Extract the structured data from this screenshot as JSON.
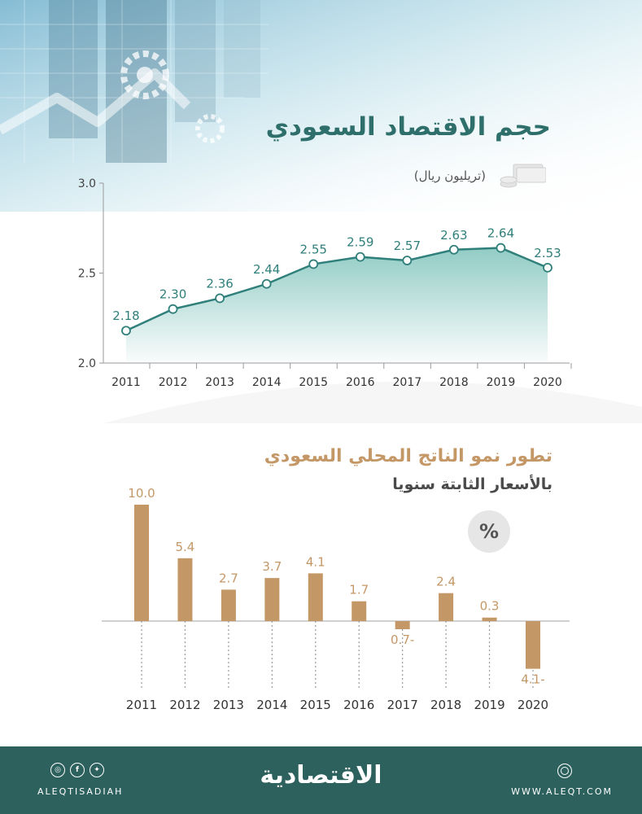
{
  "colors": {
    "teal": "#2f7f7a",
    "teal_fill": "#8cc9c2",
    "bar_tan": "#c49766",
    "title_tan": "#c49766",
    "footer": "#2c615d"
  },
  "chart1": {
    "title": "حجم الاقتصاد السعودي",
    "unit": "(تريليون ريال)",
    "icon": "money-coins-icon"
  },
  "chart2": {
    "title": "تطور نمو الناتج المحلي السعودي",
    "subtitle": "بالأسعار الثابتة سنويا",
    "unit_badge": "%"
  },
  "chart_data": [
    {
      "type": "area",
      "title": "حجم الاقتصاد السعودي",
      "ylabel": "(تريليون ريال)",
      "x": [
        "2011",
        "2012",
        "2013",
        "2014",
        "2015",
        "2016",
        "2017",
        "2018",
        "2019",
        "2020"
      ],
      "values": [
        2.18,
        2.3,
        2.36,
        2.44,
        2.55,
        2.59,
        2.57,
        2.63,
        2.64,
        2.53
      ],
      "labels": [
        "2.18",
        "2.30",
        "2.36",
        "2.44",
        "2.55",
        "2.59",
        "2.57",
        "2.63",
        "2.64",
        "2.53"
      ],
      "ylim": [
        2.0,
        3.0
      ],
      "yticks": [
        "2.0",
        "2.5",
        "3.0"
      ],
      "grid": false
    },
    {
      "type": "bar",
      "title": "تطور نمو الناتج المحلي السعودي",
      "subtitle": "بالأسعار الثابتة سنويا",
      "ylabel": "%",
      "categories": [
        "2011",
        "2012",
        "2013",
        "2014",
        "2015",
        "2016",
        "2017",
        "2018",
        "2019",
        "2020"
      ],
      "values": [
        10.0,
        5.4,
        2.7,
        3.7,
        4.1,
        1.7,
        -0.7,
        2.4,
        0.3,
        -4.1
      ],
      "labels": [
        "10.0",
        "5.4",
        "2.7",
        "3.7",
        "4.1",
        "1.7",
        "0.7-",
        "2.4",
        "0.3",
        "4.1-"
      ],
      "grid": false
    }
  ],
  "footer": {
    "brand": "الاقتصادية",
    "social_handle": "ALEQTISADIAH",
    "website": "WWW.ALEQT.COM",
    "social_icons": [
      "instagram-icon",
      "facebook-icon",
      "twitter-icon"
    ],
    "web_icon": "globe-icon"
  }
}
